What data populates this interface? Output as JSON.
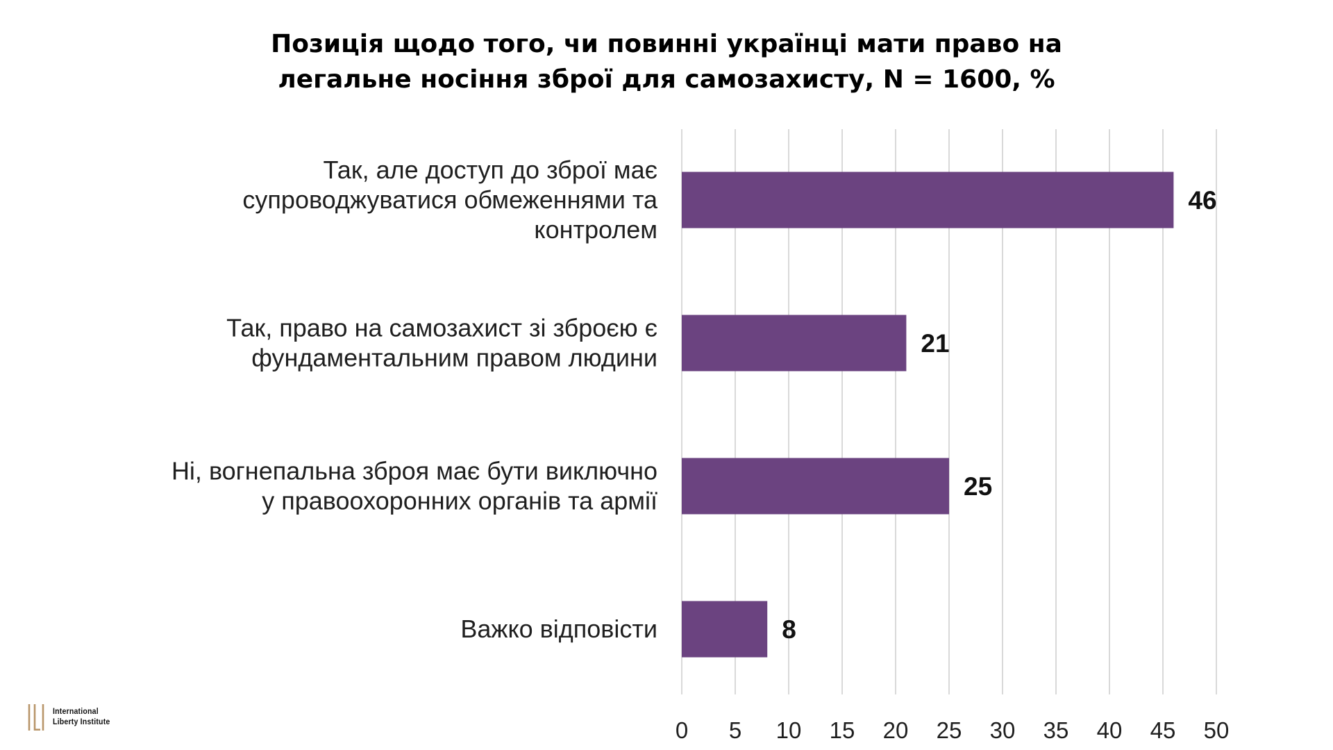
{
  "chart_data": {
    "type": "bar",
    "orientation": "horizontal",
    "title": [
      "Позиція щодо того, чи повинні українці мати право на",
      "легальне носіння зброї для самозахисту, N = 1600, %"
    ],
    "categories": [
      [
        "Так, але доступ до зброї має",
        "супроводжуватися обмеженнями та",
        "контролем"
      ],
      [
        "Так, право на самозахист зі зброєю є",
        "фундаментальним правом людини"
      ],
      [
        "Ні, вогнепальна зброя має бути виключно",
        "у правоохоронних органів та армії"
      ],
      [
        "Важко відповісти"
      ]
    ],
    "values": [
      46,
      21,
      25,
      8
    ],
    "xlim": [
      0,
      50
    ],
    "xticks": [
      0,
      5,
      10,
      15,
      20,
      25,
      30,
      35,
      40,
      45,
      50
    ],
    "grid": "vertical",
    "legend": "none",
    "bar_color": "#6b4380",
    "grid_color": "#d9d9d9"
  },
  "logo": {
    "lines": [
      "International",
      "Liberty Institute"
    ],
    "mark_color": "#b8956a"
  }
}
